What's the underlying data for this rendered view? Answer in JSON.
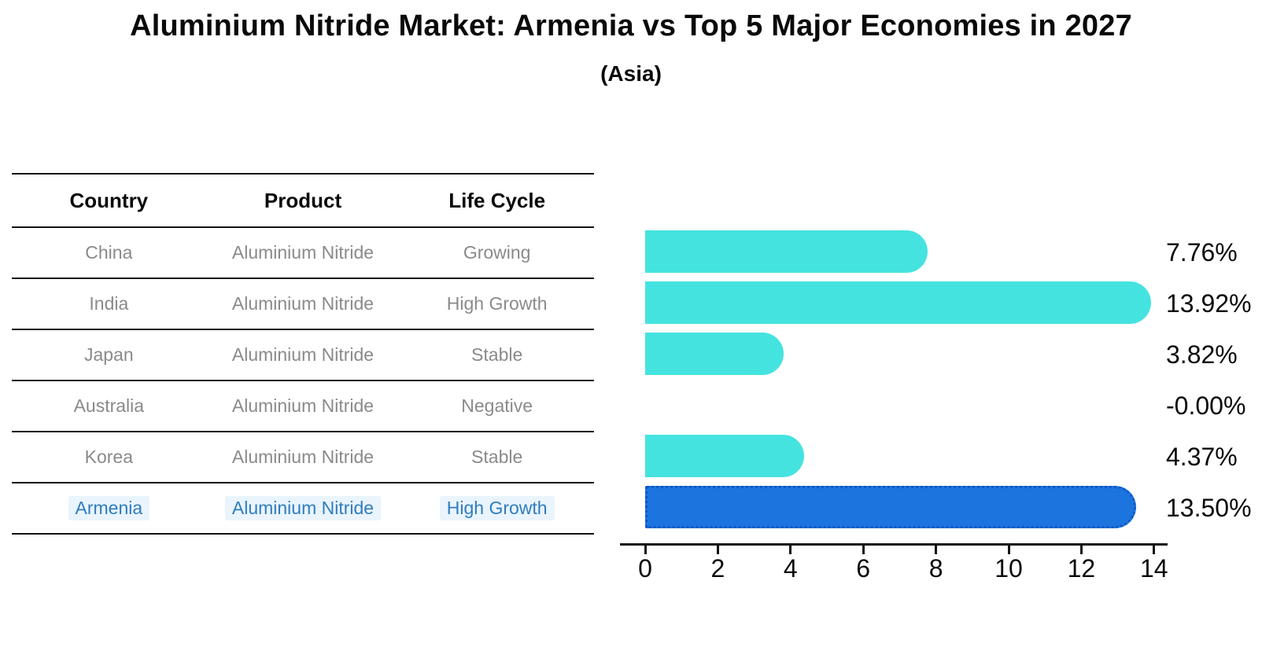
{
  "title": "Aluminium Nitride Market: Armenia vs Top 5 Major Economies in 2027",
  "subtitle": "(Asia)",
  "table": {
    "headers": [
      "Country",
      "Product",
      "Life Cycle"
    ],
    "rows": [
      {
        "country": "China",
        "product": "Aluminium Nitride",
        "life_cycle": "Growing",
        "highlighted": false
      },
      {
        "country": "India",
        "product": "Aluminium Nitride",
        "life_cycle": "High Growth",
        "highlighted": false
      },
      {
        "country": "Japan",
        "product": "Aluminium Nitride",
        "life_cycle": "Stable",
        "highlighted": false
      },
      {
        "country": "Australia",
        "product": "Aluminium Nitride",
        "life_cycle": "Negative",
        "highlighted": false
      },
      {
        "country": "Korea",
        "product": "Aluminium Nitride",
        "life_cycle": "Stable",
        "highlighted": false
      },
      {
        "country": "Armenia",
        "product": "Aluminium Nitride",
        "life_cycle": "High Growth",
        "highlighted": true
      }
    ]
  },
  "chart_data": {
    "type": "bar",
    "orientation": "horizontal",
    "title": "",
    "xlabel": "",
    "ylabel": "",
    "categories": [
      "China",
      "India",
      "Japan",
      "Australia",
      "Korea",
      "Armenia"
    ],
    "values": [
      7.76,
      13.92,
      3.82,
      -0.0,
      4.37,
      13.5
    ],
    "value_labels": [
      "7.76%",
      "13.92%",
      "3.82%",
      "-0.00%",
      "4.37%",
      "13.50%"
    ],
    "x_ticks": [
      0,
      2,
      4,
      6,
      8,
      10,
      12,
      14
    ],
    "xlim": [
      0,
      14.3
    ],
    "grid": false,
    "legend": "none",
    "highlight_index": 5
  },
  "colors": {
    "bar": "#45E3E0",
    "highlight_bar": "#1C74DE",
    "highlight_border": "#1058C4",
    "highlight_text": "#2E7DBF",
    "axis": "#141414",
    "table_text": "#8A8A8A",
    "heading_text": "#0A0A0A"
  }
}
